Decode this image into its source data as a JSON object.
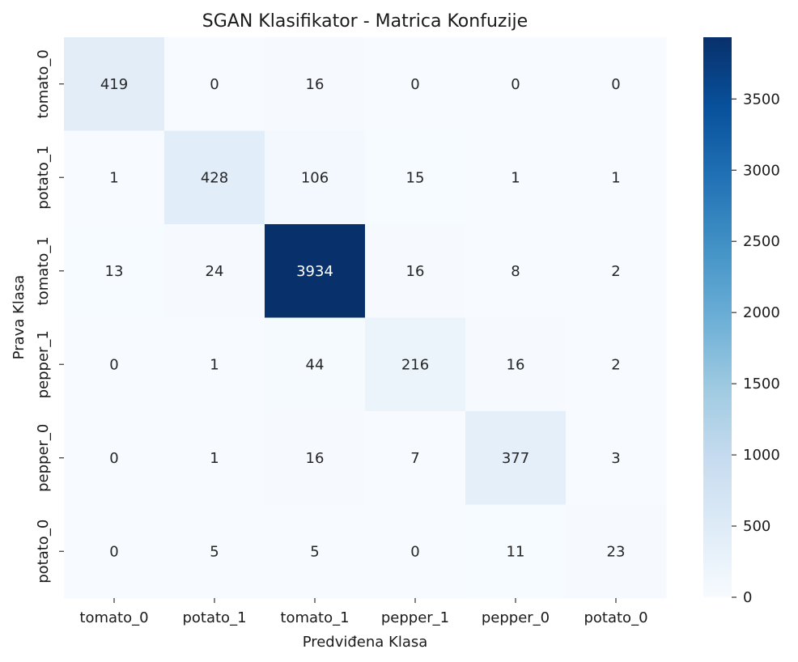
{
  "chart_data": {
    "type": "heatmap",
    "title": "SGAN Klasifikator - Matrica Konfuzije",
    "xlabel": "Predviđena Klasa",
    "ylabel": "Prava Klasa",
    "x_categories": [
      "tomato_0",
      "potato_1",
      "tomato_1",
      "pepper_1",
      "pepper_0",
      "potato_0"
    ],
    "y_categories": [
      "tomato_0",
      "potato_1",
      "tomato_1",
      "pepper_1",
      "pepper_0",
      "potato_0"
    ],
    "values": [
      [
        419,
        0,
        16,
        0,
        0,
        0
      ],
      [
        1,
        428,
        106,
        15,
        1,
        1
      ],
      [
        13,
        24,
        3934,
        16,
        8,
        2
      ],
      [
        0,
        1,
        44,
        216,
        16,
        2
      ],
      [
        0,
        1,
        16,
        7,
        377,
        3
      ],
      [
        0,
        5,
        5,
        0,
        11,
        23
      ]
    ],
    "colormap": "Blues",
    "colorbar": {
      "range": [
        0,
        3934
      ],
      "ticks": [
        0,
        500,
        1000,
        1500,
        2000,
        2500,
        3000,
        3500
      ]
    },
    "colors": {
      "low": "#f7fbff",
      "high": "#08306b"
    }
  }
}
